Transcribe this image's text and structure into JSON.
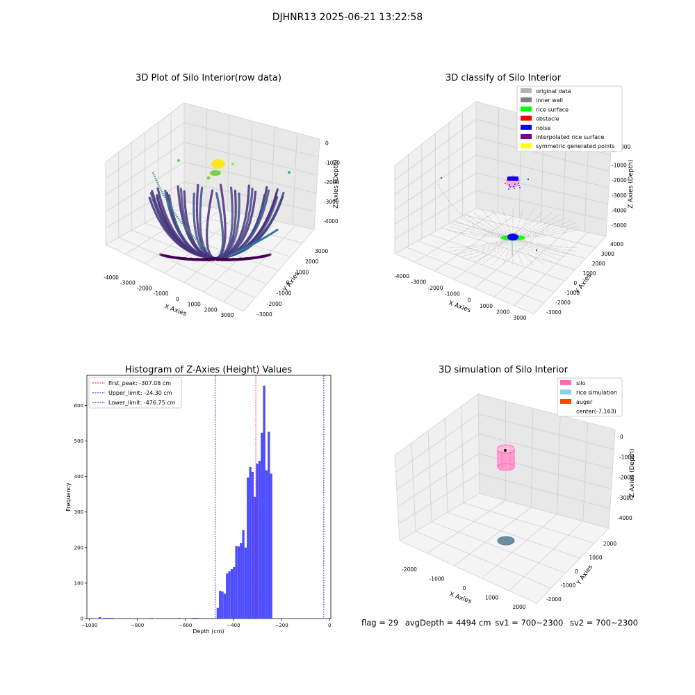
{
  "suptitle": "DJHNR13 2025-06-21 13:22:58",
  "panel_raw": {
    "title": "3D Plot of Silo Interior(row data)",
    "xlabel": "X Axies",
    "ylabel": "Y Axies",
    "zlabel": "Z Axies (Depth)",
    "xticks": [
      "-4000",
      "-3000",
      "-2000",
      "-1000",
      "0",
      "1000",
      "2000",
      "3000"
    ],
    "yticks": [
      "-3000",
      "-2000",
      "-1000",
      "0",
      "1000",
      "2000",
      "3000"
    ],
    "zticks": [
      "0",
      "-1000",
      "-2000",
      "-3000",
      "-4000"
    ]
  },
  "panel_classify": {
    "title": "3D classify of Silo Interior",
    "xlabel": "X Axies",
    "ylabel": "Y Axies",
    "zlabel": "Z Axies (Depth)",
    "xticks": [
      "-4000",
      "-3000",
      "-2000",
      "-1000",
      "0",
      "1000",
      "2000",
      "3000"
    ],
    "yticks": [
      "-3000",
      "-2000",
      "-1000",
      "0",
      "1000",
      "2000",
      "3000",
      "4000"
    ],
    "zticks": [
      "0",
      "-1000",
      "-2000",
      "-3000",
      "-4000",
      "-5000"
    ],
    "z_extra_tick": "000",
    "legend": [
      {
        "label": "original data",
        "color": "#b3b3b3"
      },
      {
        "label": "inner wall",
        "color": "#808080"
      },
      {
        "label": "rice surface",
        "color": "#00ff00"
      },
      {
        "label": "obstacle",
        "color": "#ff0000"
      },
      {
        "label": "noise",
        "color": "#0000ff"
      },
      {
        "label": "interpolated rice surface",
        "color": "#800080"
      },
      {
        "label": "symmetric generated points",
        "color": "#ffff00"
      }
    ]
  },
  "panel_hist": {
    "title": "Histogram of Z-Axies (Height) Values",
    "xlabel": "Depth (cm)",
    "ylabel": "Frequency",
    "xticks": [
      "-1000",
      "-800",
      "-600",
      "-400",
      "-200",
      "0"
    ],
    "yticks": [
      "0",
      "100",
      "200",
      "300",
      "400",
      "500",
      "600"
    ],
    "legend": [
      {
        "label": "first_peak: -307.08 cm",
        "color": "#ff0000"
      },
      {
        "label": "Upper_limit: -24.30 cm",
        "color": "#0000ff"
      },
      {
        "label": "Lower_limit: -476.75 cm",
        "color": "#0000ff"
      }
    ]
  },
  "panel_sim": {
    "title": "3D simulation of Silo Interior",
    "xlabel": "X Axies",
    "ylabel": "Y Axies",
    "zlabel": "Z Axies (Depth)",
    "xticks": [
      "-2000",
      "-1000",
      "0",
      "1000",
      "2000"
    ],
    "yticks": [
      "-2000",
      "-1000",
      "0",
      "1000",
      "2000"
    ],
    "zticks": [
      "0",
      "-1000",
      "-2000",
      "-3000",
      "-4000"
    ],
    "legend": [
      {
        "label": "silo",
        "color": "#ff69b4"
      },
      {
        "label": "rice simulation",
        "color": "#87ceeb"
      },
      {
        "label": "auger",
        "color": "#ff4500"
      },
      {
        "label": "center(-7,163)",
        "color": ""
      }
    ]
  },
  "footer": {
    "flag": "flag = 29",
    "avg": "avgDepth = 4494 cm",
    "sv1": "sv1 = 700~2300",
    "sv2": "sv2 = 700~2300"
  },
  "chart_data": [
    {
      "type": "scatter",
      "title": "3D Plot of Silo Interior(row data)",
      "xlabel": "X Axies",
      "ylabel": "Y Axies",
      "zlabel": "Z Axies (Depth)",
      "xlim": [
        -4500,
        3500
      ],
      "ylim": [
        -3000,
        3500
      ],
      "zlim": [
        -4500,
        0
      ],
      "colormap": "viridis",
      "description_points": "radial point fans converging to the silo bottom around z=-4200; yellow cluster near z=-1000"
    },
    {
      "type": "scatter",
      "title": "3D classify of Silo Interior",
      "xlabel": "X Axies",
      "ylabel": "Y Axies",
      "zlabel": "Z Axies (Depth)",
      "xlim": [
        -4500,
        3500
      ],
      "ylim": [
        -3500,
        4500
      ],
      "zlim": [
        -5500,
        0
      ],
      "series": [
        {
          "name": "original data",
          "color": "#b3b3b3"
        },
        {
          "name": "inner wall",
          "color": "#808080"
        },
        {
          "name": "rice surface",
          "color": "#00ff00"
        },
        {
          "name": "obstacle",
          "color": "#ff0000"
        },
        {
          "name": "noise",
          "color": "#0000ff"
        },
        {
          "name": "interpolated rice surface",
          "color": "#800080"
        },
        {
          "name": "symmetric generated points",
          "color": "#ffff00"
        }
      ]
    },
    {
      "type": "bar",
      "title": "Histogram of Z-Axies (Height) Values",
      "xlabel": "Depth (cm)",
      "ylabel": "Frequency",
      "xlim": [
        -1010,
        5
      ],
      "ylim": [
        0,
        685
      ],
      "bin_width": 9.5,
      "bins": [
        {
          "x": -961,
          "v": 4
        },
        {
          "x": -951,
          "v": 1
        },
        {
          "x": -942,
          "v": 2
        },
        {
          "x": -932,
          "v": 2
        },
        {
          "x": -922,
          "v": 2
        },
        {
          "x": -913,
          "v": 2
        },
        {
          "x": -903,
          "v": 2
        },
        {
          "x": -893,
          "v": 1
        },
        {
          "x": -744,
          "v": 2
        },
        {
          "x": -734,
          "v": 1
        },
        {
          "x": -631,
          "v": 2
        },
        {
          "x": -621,
          "v": 1
        },
        {
          "x": -574,
          "v": 2
        },
        {
          "x": -564,
          "v": 2
        },
        {
          "x": -555,
          "v": 2
        },
        {
          "x": -470,
          "v": 30
        },
        {
          "x": -460,
          "v": 78
        },
        {
          "x": -451,
          "v": 76
        },
        {
          "x": -441,
          "v": 70
        },
        {
          "x": -432,
          "v": 127
        },
        {
          "x": -422,
          "v": 133
        },
        {
          "x": -413,
          "v": 139
        },
        {
          "x": -403,
          "v": 145
        },
        {
          "x": -394,
          "v": 204
        },
        {
          "x": -384,
          "v": 203
        },
        {
          "x": -375,
          "v": 213
        },
        {
          "x": -365,
          "v": 249
        },
        {
          "x": -356,
          "v": 200
        },
        {
          "x": -346,
          "v": 397
        },
        {
          "x": -337,
          "v": 427
        },
        {
          "x": -327,
          "v": 413
        },
        {
          "x": -318,
          "v": 343
        },
        {
          "x": -308,
          "v": 436
        },
        {
          "x": -299,
          "v": 444
        },
        {
          "x": -289,
          "v": 523
        },
        {
          "x": -280,
          "v": 656
        },
        {
          "x": -270,
          "v": 417
        },
        {
          "x": -261,
          "v": 526
        },
        {
          "x": -251,
          "v": 408
        }
      ],
      "vlines": [
        {
          "name": "first_peak",
          "x": -307.08,
          "color": "#ff0000"
        },
        {
          "name": "Upper_limit",
          "x": -24.3,
          "color": "#0000ff"
        },
        {
          "name": "Lower_limit",
          "x": -476.75,
          "color": "#0000ff"
        }
      ]
    },
    {
      "type": "scatter",
      "title": "3D simulation of Silo Interior",
      "xlabel": "X Axies",
      "ylabel": "Y Axies",
      "zlabel": "Z Axies (Depth)",
      "xlim": [
        -2500,
        2500
      ],
      "ylim": [
        -2500,
        2500
      ],
      "zlim": [
        -4500,
        0
      ],
      "series": [
        {
          "name": "silo",
          "color": "#ff69b4"
        },
        {
          "name": "rice simulation",
          "color": "#87ceeb"
        },
        {
          "name": "auger",
          "color": "#ff4500"
        }
      ],
      "center": [
        -7,
        163
      ]
    }
  ]
}
